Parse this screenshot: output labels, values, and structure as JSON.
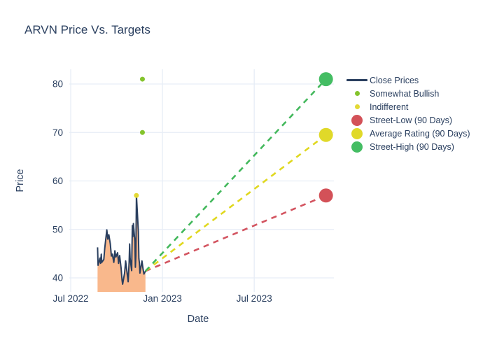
{
  "figure": {
    "title": "ARVN Price Vs. Targets"
  },
  "chart_data": {
    "type": "line",
    "title": "ARVN Price Vs. Targets",
    "xlabel": "Date",
    "ylabel": "Price",
    "grid": true,
    "legend_position": "outside-right-top",
    "background": "#ffffff",
    "grid_color": "#e7edf6",
    "text_color": "#2a3f5f",
    "y_ticks": [
      40,
      50,
      60,
      70,
      80
    ],
    "y_range": [
      37,
      83
    ],
    "x_ticks": [
      {
        "label": "Jul 2022",
        "date": "2022-07-01"
      },
      {
        "label": "Jan 2023",
        "date": "2023-01-01"
      },
      {
        "label": "Jul 2023",
        "date": "2023-07-01"
      }
    ],
    "x_range": [
      "2022-06-28",
      "2023-12-18"
    ],
    "series": [
      {
        "name": "Close Prices",
        "type": "line",
        "color": "#2a3f5f",
        "fill_color": "#f9b88c",
        "points": [
          [
            "2022-08-24",
            46.3
          ],
          [
            "2022-08-25",
            42.6
          ],
          [
            "2022-08-29",
            44.1
          ],
          [
            "2022-08-30",
            43.0
          ],
          [
            "2022-09-01",
            44.9
          ],
          [
            "2022-09-02",
            43.2
          ],
          [
            "2022-09-06",
            43.8
          ],
          [
            "2022-09-08",
            46.2
          ],
          [
            "2022-09-12",
            49.9
          ],
          [
            "2022-09-14",
            48.0
          ],
          [
            "2022-09-16",
            48.9
          ],
          [
            "2022-09-19",
            47.0
          ],
          [
            "2022-09-21",
            44.5
          ],
          [
            "2022-09-23",
            44.9
          ],
          [
            "2022-09-26",
            43.2
          ],
          [
            "2022-09-28",
            45.6
          ],
          [
            "2022-09-30",
            44.3
          ],
          [
            "2022-10-03",
            45.2
          ],
          [
            "2022-10-05",
            43.0
          ],
          [
            "2022-10-07",
            44.6
          ],
          [
            "2022-10-10",
            42.0
          ],
          [
            "2022-10-12",
            39.5
          ],
          [
            "2022-10-13",
            38.7
          ],
          [
            "2022-10-17",
            41.0
          ],
          [
            "2022-10-19",
            43.5
          ],
          [
            "2022-10-21",
            41.8
          ],
          [
            "2022-10-24",
            39.2
          ],
          [
            "2022-10-26",
            43.3
          ],
          [
            "2022-10-27",
            47.0
          ],
          [
            "2022-10-28",
            44.0
          ],
          [
            "2022-10-31",
            41.5
          ],
          [
            "2022-11-01",
            45.0
          ],
          [
            "2022-11-02",
            50.8
          ],
          [
            "2022-11-03",
            48.5
          ],
          [
            "2022-11-04",
            51.2
          ],
          [
            "2022-11-07",
            47.5
          ],
          [
            "2022-11-08",
            42.2
          ],
          [
            "2022-11-09",
            44.5
          ],
          [
            "2022-11-10",
            57.0
          ],
          [
            "2022-11-14",
            49.5
          ],
          [
            "2022-11-15",
            44.0
          ],
          [
            "2022-11-16",
            43.0
          ],
          [
            "2022-11-17",
            41.0
          ],
          [
            "2022-11-21",
            43.5
          ],
          [
            "2022-11-23",
            42.0
          ],
          [
            "2022-11-25",
            40.8
          ],
          [
            "2022-11-28",
            41.4
          ]
        ]
      },
      {
        "name": "Somewhat Bullish",
        "type": "scatter",
        "color": "#84c42d",
        "marker_radius": 3.5,
        "points": [
          [
            "2022-11-22",
            81.0
          ],
          [
            "2022-11-22",
            70.0
          ]
        ]
      },
      {
        "name": "Indifferent",
        "type": "scatter",
        "color": "#e3d935",
        "marker_radius": 3.5,
        "points": [
          [
            "2022-11-10",
            57.0
          ]
        ]
      },
      {
        "name": "Street-Low (90 Days)",
        "type": "target",
        "color": "#d35158",
        "dash_color": "#d35460",
        "marker_radius": 10,
        "points": [
          [
            "2023-11-22",
            57.0
          ]
        ]
      },
      {
        "name": "Average Rating (90 Days)",
        "type": "target",
        "color": "#e0d929",
        "dash_color": "#e0d81f",
        "marker_radius": 10,
        "points": [
          [
            "2023-11-22",
            69.5
          ]
        ]
      },
      {
        "name": "Street-High (90 Days)",
        "type": "target",
        "color": "#44bd63",
        "dash_color": "#43b85c",
        "marker_radius": 10,
        "points": [
          [
            "2023-11-22",
            81.0
          ]
        ]
      }
    ],
    "projection_origin": [
      "2022-11-28",
      41.4
    ]
  },
  "legend": {
    "items": [
      {
        "label": "Close Prices",
        "marker": "line",
        "color": "#2a3f5f"
      },
      {
        "label": "Somewhat Bullish",
        "marker": "dot-sm",
        "color": "#84c42d"
      },
      {
        "label": "Indifferent",
        "marker": "dot-sm",
        "color": "#e3d935"
      },
      {
        "label": "Street-Low (90 Days)",
        "marker": "dot-lg",
        "color": "#d35158"
      },
      {
        "label": "Average Rating (90 Days)",
        "marker": "dot-lg",
        "color": "#e0d929"
      },
      {
        "label": "Street-High (90 Days)",
        "marker": "dot-lg",
        "color": "#44bd63"
      }
    ]
  }
}
